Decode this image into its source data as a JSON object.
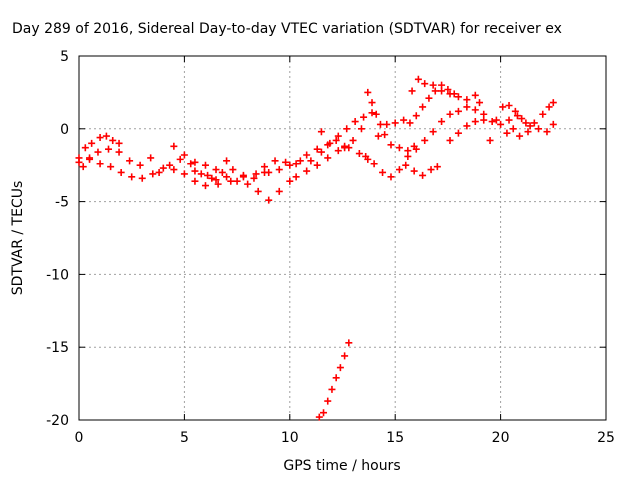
{
  "chart_data": {
    "type": "scatter",
    "title": "Day 289 of 2016, Sidereal Day-to-day VTEC variation (SDTVAR) for receiver ex",
    "xlabel": "GPS time / hours",
    "ylabel": "SDTVAR / TECUs",
    "xlim": [
      0,
      25
    ],
    "ylim": [
      -20,
      5
    ],
    "x_ticks": [
      0,
      5,
      10,
      15,
      20,
      25
    ],
    "y_ticks": [
      -20,
      -15,
      -10,
      -5,
      0,
      5
    ],
    "x_tick_labels": [
      "0",
      "5",
      "10",
      "15",
      "20",
      "25"
    ],
    "y_tick_labels": [
      "-20",
      "-15",
      "-10",
      "-5",
      "0",
      "5"
    ],
    "grid": true,
    "marker": "+",
    "color": "#ff0000",
    "series": [
      {
        "points": [
          [
            0.0,
            -2.0
          ],
          [
            0.3,
            -1.3
          ],
          [
            0.6,
            -1.0
          ],
          [
            1.0,
            -0.6
          ],
          [
            1.3,
            -0.5
          ],
          [
            1.6,
            -0.8
          ],
          [
            1.9,
            -1.0
          ],
          [
            0.2,
            -2.6
          ],
          [
            0.5,
            -2.0
          ],
          [
            0.9,
            -1.6
          ],
          [
            1.4,
            -1.4
          ],
          [
            1.9,
            -1.6
          ],
          [
            2.4,
            -2.2
          ],
          [
            2.9,
            -2.5
          ],
          [
            3.4,
            -2.0
          ],
          [
            0.0,
            -2.3
          ],
          [
            0.5,
            -2.1
          ],
          [
            1.0,
            -2.4
          ],
          [
            1.5,
            -2.6
          ],
          [
            2.0,
            -3.0
          ],
          [
            2.5,
            -3.3
          ],
          [
            3.0,
            -3.4
          ],
          [
            3.5,
            -3.1
          ],
          [
            4.0,
            -2.7
          ],
          [
            4.5,
            -1.2
          ],
          [
            5.0,
            -1.8
          ],
          [
            5.5,
            -2.3
          ],
          [
            6.0,
            -2.5
          ],
          [
            6.5,
            -2.8
          ],
          [
            7.0,
            -2.2
          ],
          [
            3.8,
            -3.0
          ],
          [
            4.3,
            -2.5
          ],
          [
            4.8,
            -2.1
          ],
          [
            5.3,
            -2.4
          ],
          [
            5.8,
            -3.1
          ],
          [
            6.3,
            -3.4
          ],
          [
            6.8,
            -3.0
          ],
          [
            7.3,
            -2.8
          ],
          [
            7.8,
            -3.3
          ],
          [
            8.3,
            -3.4
          ],
          [
            8.8,
            -3.0
          ],
          [
            4.5,
            -2.8
          ],
          [
            5.0,
            -3.1
          ],
          [
            5.5,
            -3.6
          ],
          [
            6.0,
            -3.9
          ],
          [
            6.5,
            -3.5
          ],
          [
            7.0,
            -3.3
          ],
          [
            7.5,
            -3.6
          ],
          [
            8.0,
            -3.8
          ],
          [
            8.5,
            -4.3
          ],
          [
            9.0,
            -4.9
          ],
          [
            9.5,
            -4.3
          ],
          [
            10.0,
            -3.6
          ],
          [
            5.5,
            -2.9
          ],
          [
            6.1,
            -3.2
          ],
          [
            6.6,
            -3.8
          ],
          [
            7.2,
            -3.6
          ],
          [
            7.8,
            -3.2
          ],
          [
            8.4,
            -3.1
          ],
          [
            9.0,
            -3.0
          ],
          [
            9.5,
            -2.8
          ],
          [
            10.0,
            -2.5
          ],
          [
            10.5,
            -2.2
          ],
          [
            11.0,
            -2.2
          ],
          [
            8.8,
            -2.6
          ],
          [
            9.3,
            -2.2
          ],
          [
            9.8,
            -2.3
          ],
          [
            10.3,
            -2.4
          ],
          [
            10.8,
            -1.8
          ],
          [
            11.3,
            -1.4
          ],
          [
            11.5,
            -0.2
          ],
          [
            11.8,
            -1.1
          ],
          [
            12.2,
            -0.8
          ],
          [
            12.6,
            -1.3
          ],
          [
            10.3,
            -3.3
          ],
          [
            10.8,
            -2.9
          ],
          [
            11.3,
            -2.5
          ],
          [
            11.8,
            -2.0
          ],
          [
            12.3,
            -1.5
          ],
          [
            12.8,
            -1.3
          ],
          [
            13.3,
            -1.7
          ],
          [
            13.7,
            -2.1
          ],
          [
            11.5,
            -1.6
          ],
          [
            11.9,
            -1.0
          ],
          [
            12.3,
            -0.5
          ],
          [
            12.7,
            0.0
          ],
          [
            13.1,
            0.5
          ],
          [
            13.5,
            0.8
          ],
          [
            13.9,
            1.1
          ],
          [
            13.4,
            0.0
          ],
          [
            13.0,
            -0.8
          ],
          [
            12.6,
            -1.2
          ],
          [
            13.7,
            2.5
          ],
          [
            13.9,
            1.8
          ],
          [
            14.1,
            1.0
          ],
          [
            14.3,
            0.3
          ],
          [
            14.5,
            -0.4
          ],
          [
            14.8,
            -1.1
          ],
          [
            15.2,
            -1.3
          ],
          [
            15.6,
            -1.5
          ],
          [
            15.9,
            -1.2
          ],
          [
            13.6,
            -1.9
          ],
          [
            14.0,
            -2.4
          ],
          [
            14.4,
            -3.0
          ],
          [
            14.8,
            -3.3
          ],
          [
            15.2,
            -2.8
          ],
          [
            15.5,
            -2.5
          ],
          [
            15.9,
            -2.9
          ],
          [
            16.3,
            -3.2
          ],
          [
            16.7,
            -2.8
          ],
          [
            17.0,
            -2.6
          ],
          [
            14.2,
            -0.5
          ],
          [
            14.6,
            0.3
          ],
          [
            15.0,
            0.4
          ],
          [
            15.4,
            0.6
          ],
          [
            15.7,
            0.4
          ],
          [
            16.0,
            0.9
          ],
          [
            16.3,
            1.5
          ],
          [
            16.6,
            2.1
          ],
          [
            16.9,
            2.6
          ],
          [
            17.2,
            3.0
          ],
          [
            17.5,
            2.7
          ],
          [
            17.8,
            2.4
          ],
          [
            15.8,
            2.6
          ],
          [
            16.1,
            3.4
          ],
          [
            16.4,
            3.1
          ],
          [
            16.8,
            3.0
          ],
          [
            17.2,
            2.6
          ],
          [
            17.6,
            2.4
          ],
          [
            18.0,
            2.2
          ],
          [
            18.4,
            2.0
          ],
          [
            18.8,
            2.3
          ],
          [
            19.0,
            1.8
          ],
          [
            15.6,
            -1.9
          ],
          [
            16.0,
            -1.4
          ],
          [
            16.4,
            -0.8
          ],
          [
            16.8,
            -0.2
          ],
          [
            17.2,
            0.5
          ],
          [
            17.6,
            1.0
          ],
          [
            18.0,
            1.2
          ],
          [
            18.4,
            1.5
          ],
          [
            18.8,
            1.3
          ],
          [
            19.2,
            1.0
          ],
          [
            17.6,
            -0.8
          ],
          [
            18.0,
            -0.3
          ],
          [
            18.4,
            0.2
          ],
          [
            18.8,
            0.5
          ],
          [
            19.2,
            0.6
          ],
          [
            19.6,
            0.5
          ],
          [
            20.0,
            0.3
          ],
          [
            20.4,
            0.6
          ],
          [
            20.8,
            0.9
          ],
          [
            21.2,
            0.4
          ],
          [
            19.5,
            -0.8
          ],
          [
            19.8,
            0.6
          ],
          [
            20.1,
            1.5
          ],
          [
            20.4,
            1.6
          ],
          [
            20.7,
            1.2
          ],
          [
            21.0,
            0.7
          ],
          [
            21.4,
            0.2
          ],
          [
            21.8,
            0.0
          ],
          [
            22.2,
            -0.2
          ],
          [
            22.5,
            0.3
          ],
          [
            20.3,
            -0.3
          ],
          [
            20.6,
            0.0
          ],
          [
            20.9,
            -0.5
          ],
          [
            21.3,
            -0.2
          ],
          [
            21.6,
            0.4
          ],
          [
            22.0,
            1.0
          ],
          [
            22.3,
            1.5
          ],
          [
            22.5,
            1.8
          ],
          [
            11.4,
            -19.8
          ],
          [
            11.6,
            -19.5
          ],
          [
            11.8,
            -18.7
          ],
          [
            12.0,
            -17.9
          ],
          [
            12.2,
            -17.1
          ],
          [
            12.4,
            -16.4
          ],
          [
            12.6,
            -15.6
          ],
          [
            12.8,
            -14.7
          ]
        ]
      }
    ]
  }
}
